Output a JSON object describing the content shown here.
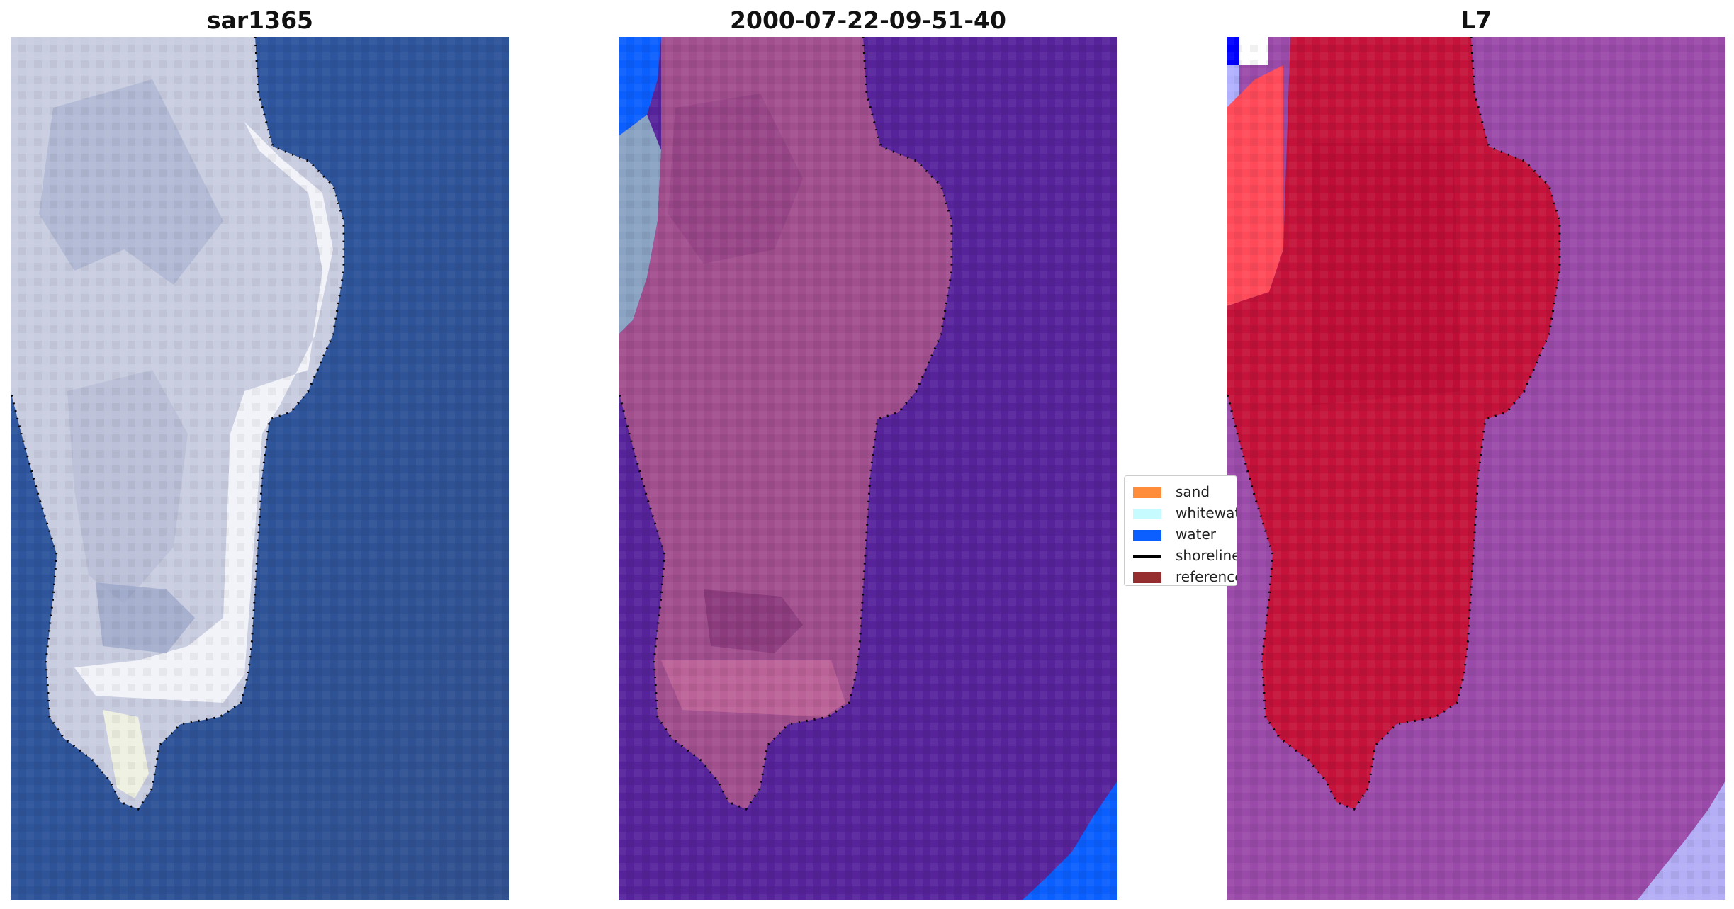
{
  "panels": [
    {
      "title": "sar1365"
    },
    {
      "title": "2000-07-22-09-51-40"
    },
    {
      "title": "L7"
    }
  ],
  "legend": {
    "items": [
      {
        "label": "sand",
        "color": "#ff8c3a",
        "kind": "patch",
        "icon": "sand-swatch-icon"
      },
      {
        "label": "whitewater",
        "color": "#c6fbff",
        "kind": "patch",
        "icon": "whitewater-swatch-icon"
      },
      {
        "label": "water",
        "color": "#0b5fff",
        "kind": "patch",
        "icon": "water-swatch-icon"
      },
      {
        "label": "shoreline",
        "color": "#000000",
        "kind": "line",
        "icon": "shoreline-line-icon"
      },
      {
        "label": "reference",
        "color": "#962d2f",
        "kind": "patch",
        "icon": "reference-swatch-icon"
      }
    ]
  },
  "colors": {
    "sea_rgb": "#2f5497",
    "land_rgb": "#d8dbe9",
    "overlay_purple": "#57249a",
    "overlay_pink": "#b2588f",
    "overlay_water": "#0b5fff",
    "l7_red": "#c4123a",
    "l7_purple": "#9a4aa9",
    "l7_light": "#b3aef5"
  }
}
